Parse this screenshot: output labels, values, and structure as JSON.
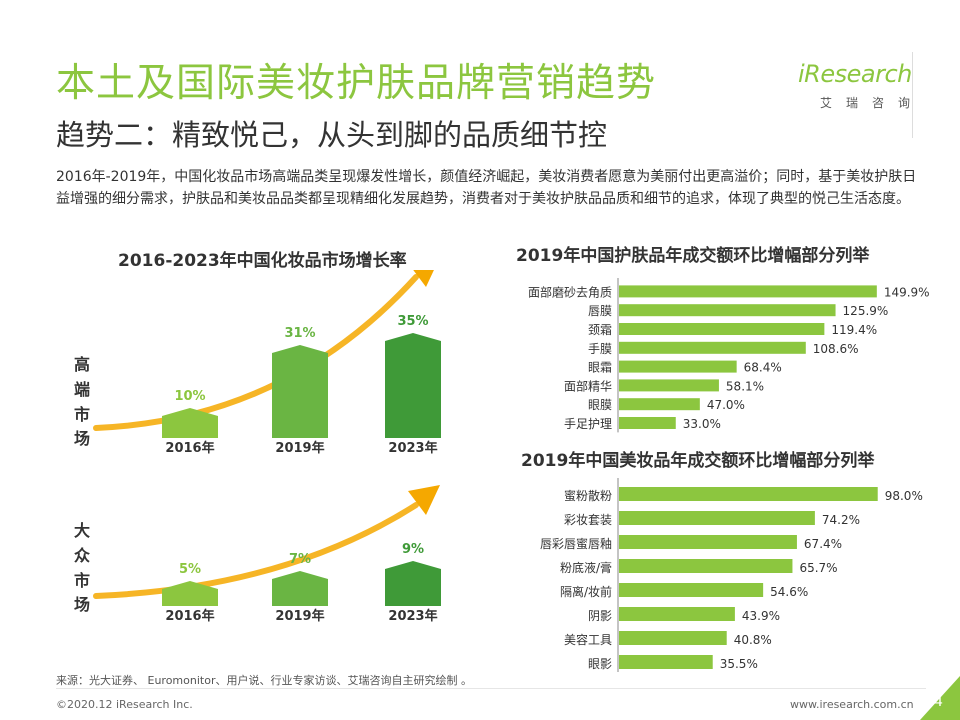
{
  "header": {
    "title": "本土及国际美妆护肤品牌营销趋势",
    "subtitle": "趋势二：精致悦己，从头到脚的品质细节控",
    "intro": "2016年-2019年，中国化妆品市场高端品类呈现爆发性增长，颜值经济崛起，美妆消费者愿意为美丽付出更高溢价；同时，基于美妆护肤日益增强的细分需求，护肤品和美妆品品类都呈现精细化发展趋势，消费者对于美妆护肤品品质和细节的追求，体现了典型的悦己生活态度。"
  },
  "logo": {
    "word": "iResearch",
    "cn": "艾瑞咨询"
  },
  "colors": {
    "accent": "#8cc63f",
    "arrow": "#f5a800",
    "dark_green": "#3f9a38",
    "mid_green": "#6ab543",
    "light_green": "#8cc63f"
  },
  "chart_data": [
    {
      "type": "bar",
      "title": "2016-2023年中国化妆品市场增长率",
      "categories": [
        "2016年",
        "2019年",
        "2023年"
      ],
      "series": [
        {
          "name": "高端市场",
          "values": [
            10,
            31,
            35
          ],
          "labels": [
            "10%",
            "31%",
            "35%"
          ]
        },
        {
          "name": "大众市场",
          "values": [
            5,
            7,
            9
          ],
          "labels": [
            "5%",
            "7%",
            "9%"
          ]
        }
      ]
    },
    {
      "type": "bar",
      "title": "2019年中国护肤品年成交额环比增幅部分列举",
      "categories": [
        "面部磨砂去角质",
        "唇膜",
        "颈霜",
        "手膜",
        "眼霜",
        "面部精华",
        "眼膜",
        "手足护理"
      ],
      "values": [
        149.9,
        125.9,
        119.4,
        108.6,
        68.4,
        58.1,
        47.0,
        33.0
      ],
      "labels": [
        "149.9%",
        "125.9%",
        "119.4%",
        "108.6%",
        "68.4%",
        "58.1%",
        "47.0%",
        "33.0%"
      ]
    },
    {
      "type": "bar",
      "title": "2019年中国美妆品年成交额环比增幅部分列举",
      "categories": [
        "蜜粉散粉",
        "彩妆套装",
        "唇彩唇蜜唇釉",
        "粉底液/膏",
        "隔离/妆前",
        "阴影",
        "美容工具",
        "眼影"
      ],
      "values": [
        98.0,
        74.2,
        67.4,
        65.7,
        54.6,
        43.9,
        40.8,
        35.5
      ],
      "labels": [
        "98.0%",
        "74.2%",
        "67.4%",
        "65.7%",
        "54.6%",
        "43.9%",
        "40.8%",
        "35.5%"
      ]
    }
  ],
  "footer": {
    "source": "来源：光大证券、 Euromonitor、用户说、行业专家访谈、艾瑞咨询自主研究绘制 。",
    "copyright": "©2020.12 iResearch Inc.",
    "website": "www.iresearch.com.cn",
    "page": "4"
  }
}
